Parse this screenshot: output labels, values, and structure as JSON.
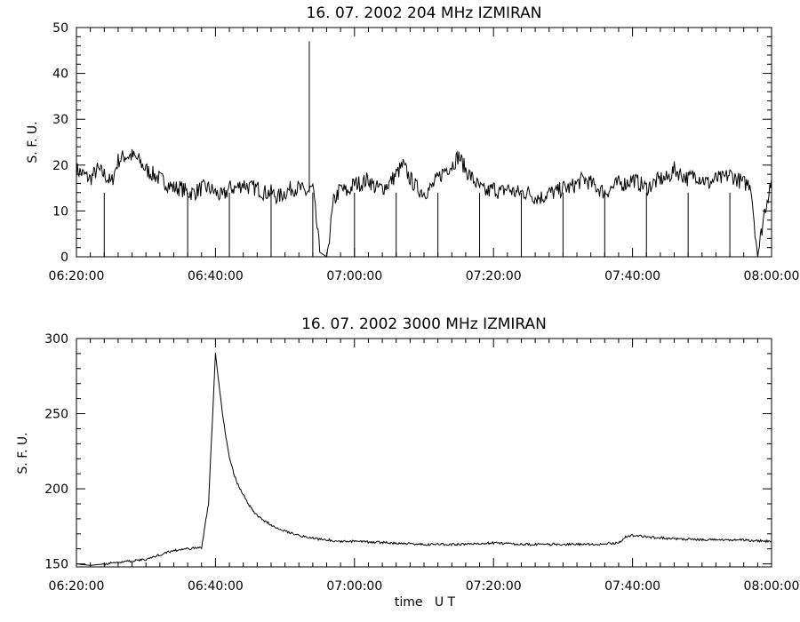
{
  "chart_data": [
    {
      "type": "line",
      "title": "16.  07.  2002    204 MHz    IZMIRAN",
      "xlabel": "",
      "ylabel": "S. F. U.",
      "xlim": [
        "06:20:00",
        "08:00:00"
      ],
      "ylim": [
        0,
        50
      ],
      "xticks": [
        "06:20:00",
        "06:40:00",
        "07:00:00",
        "07:20:00",
        "07:40:00",
        "08:00:00"
      ],
      "yticks": [
        0,
        10,
        20,
        30,
        40,
        50
      ],
      "grid": false,
      "series": [
        {
          "x": [
            "06:20:00",
            "06:21:00",
            "06:22:00",
            "06:23:00",
            "06:24:00",
            "06:25:00",
            "06:26:00",
            "06:27:00",
            "06:28:00",
            "06:29:00",
            "06:30:00",
            "06:31:00",
            "06:32:00",
            "06:33:00",
            "06:34:00",
            "06:35:00",
            "06:36:00",
            "06:37:00",
            "06:38:00",
            "06:39:00",
            "06:40:00",
            "06:41:00",
            "06:42:00",
            "06:43:00",
            "06:44:00",
            "06:45:00",
            "06:46:00",
            "06:47:00",
            "06:48:00",
            "06:49:00",
            "06:50:00",
            "06:51:00",
            "06:52:00",
            "06:53:00",
            "06:54:00",
            "06:55:00",
            "06:56:00",
            "06:57:00",
            "06:58:00",
            "06:59:00",
            "07:00:00",
            "07:01:00",
            "07:02:00",
            "07:03:00",
            "07:04:00",
            "07:05:00",
            "07:06:00",
            "07:07:00",
            "07:08:00",
            "07:09:00",
            "07:10:00",
            "07:11:00",
            "07:12:00",
            "07:13:00",
            "07:14:00",
            "07:15:00",
            "07:16:00",
            "07:17:00",
            "07:18:00",
            "07:19:00",
            "07:20:00",
            "07:21:00",
            "07:22:00",
            "07:23:00",
            "07:24:00",
            "07:25:00",
            "07:26:00",
            "07:27:00",
            "07:28:00",
            "07:29:00",
            "07:30:00",
            "07:31:00",
            "07:32:00",
            "07:33:00",
            "07:34:00",
            "07:35:00",
            "07:36:00",
            "07:37:00",
            "07:38:00",
            "07:39:00",
            "07:40:00",
            "07:41:00",
            "07:42:00",
            "07:43:00",
            "07:44:00",
            "07:45:00",
            "07:46:00",
            "07:47:00",
            "07:48:00",
            "07:49:00",
            "07:50:00",
            "07:51:00",
            "07:52:00",
            "07:53:00",
            "07:54:00",
            "07:55:00",
            "07:56:00",
            "07:57:00",
            "07:58:00",
            "07:59:00",
            "08:00:00"
          ],
          "y": [
            19,
            18,
            17,
            19,
            18,
            16,
            21,
            22,
            22,
            21,
            19,
            18,
            17,
            16,
            15,
            15,
            14,
            14,
            15,
            15,
            14,
            13,
            15,
            15,
            16,
            15,
            15,
            14,
            14,
            13,
            14,
            15,
            15,
            14,
            15,
            1,
            0,
            12,
            15,
            14,
            16,
            16,
            17,
            15,
            15,
            16,
            18,
            20,
            17,
            15,
            14,
            15,
            17,
            19,
            20,
            22,
            19,
            17,
            15,
            14,
            15,
            14,
            15,
            14,
            14,
            14,
            13,
            13,
            14,
            14,
            15,
            15,
            16,
            17,
            16,
            15,
            14,
            15,
            16,
            16,
            17,
            16,
            15,
            16,
            17,
            17,
            19,
            18,
            17,
            18,
            17,
            16,
            17,
            17,
            18,
            17,
            16,
            16,
            0,
            10,
            17
          ]
        }
      ],
      "dropouts": [
        "06:24:00",
        "06:36:00",
        "06:42:00",
        "06:48:00",
        "06:54:00",
        "07:00:00",
        "07:06:00",
        "07:12:00",
        "07:18:00",
        "07:24:00",
        "07:30:00",
        "07:36:00",
        "07:42:00",
        "07:48:00",
        "07:54:00"
      ],
      "spike": {
        "x": "06:53:30",
        "y": 47
      }
    },
    {
      "type": "line",
      "title": "16.  07.  2002    3000 MHz    IZMIRAN",
      "xlabel": "time   U T",
      "ylabel": "S. F. U.",
      "xlim": [
        "06:20:00",
        "08:00:00"
      ],
      "ylim": [
        148,
        300
      ],
      "xticks": [
        "06:20:00",
        "06:40:00",
        "07:00:00",
        "07:20:00",
        "07:40:00",
        "08:00:00"
      ],
      "yticks": [
        150,
        200,
        250,
        300
      ],
      "grid": false,
      "series": [
        {
          "x": [
            "06:20:00",
            "06:22:00",
            "06:24:00",
            "06:26:00",
            "06:28:00",
            "06:30:00",
            "06:32:00",
            "06:34:00",
            "06:36:00",
            "06:38:00",
            "06:39:00",
            "06:39:30",
            "06:40:00",
            "06:40:30",
            "06:41:00",
            "06:41:30",
            "06:42:00",
            "06:43:00",
            "06:44:00",
            "06:45:00",
            "06:46:00",
            "06:48:00",
            "06:50:00",
            "06:52:00",
            "06:54:00",
            "06:56:00",
            "06:58:00",
            "07:00:00",
            "07:05:00",
            "07:10:00",
            "07:15:00",
            "07:20:00",
            "07:25:00",
            "07:30:00",
            "07:35:00",
            "07:38:00",
            "07:39:00",
            "07:40:00",
            "07:42:00",
            "07:45:00",
            "07:50:00",
            "07:55:00",
            "08:00:00"
          ],
          "y": [
            150,
            149,
            150,
            151,
            152,
            153,
            156,
            159,
            160,
            161,
            190,
            240,
            290,
            270,
            250,
            235,
            220,
            205,
            196,
            188,
            182,
            176,
            172,
            169,
            167,
            166,
            165,
            165,
            164,
            163,
            163,
            164,
            163,
            163,
            163,
            164,
            168,
            169,
            168,
            167,
            166,
            166,
            165
          ]
        }
      ]
    }
  ]
}
